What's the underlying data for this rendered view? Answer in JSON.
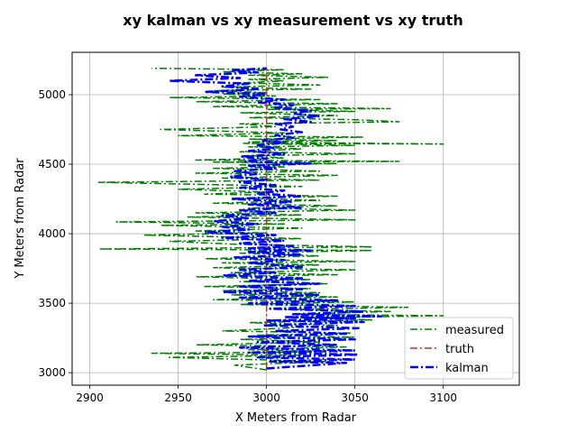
{
  "chart_data": {
    "type": "line",
    "title": "xy kalman vs xy measurement vs xy truth",
    "xlabel": "X Meters from Radar",
    "ylabel": "Y Meters from Radar",
    "xlim": [
      2890,
      3143
    ],
    "ylim": [
      2910,
      5305
    ],
    "xticks": [
      "2900",
      "2950",
      "3000",
      "3050",
      "3100"
    ],
    "yticks": [
      "3000",
      "3500",
      "4000",
      "4500",
      "5000"
    ],
    "grid": true,
    "legend_position": "lower-right",
    "series": [
      {
        "name": "measured",
        "color": "#008000",
        "style": "dash-dot",
        "points": [
          [
            3000,
            3020
          ],
          [
            2982,
            3055
          ],
          [
            3035,
            3080
          ],
          [
            2945,
            3110
          ],
          [
            3020,
            3125
          ],
          [
            2935,
            3140
          ],
          [
            3040,
            3150
          ],
          [
            2990,
            3165
          ],
          [
            3045,
            3185
          ],
          [
            2960,
            3200
          ],
          [
            3030,
            3220
          ],
          [
            2985,
            3240
          ],
          [
            3050,
            3255
          ],
          [
            2995,
            3270
          ],
          [
            3048,
            3285
          ],
          [
            2975,
            3300
          ],
          [
            3010,
            3320
          ],
          [
            3040,
            3340
          ],
          [
            2990,
            3360
          ],
          [
            3060,
            3380
          ],
          [
            3020,
            3395
          ],
          [
            3100,
            3410
          ],
          [
            3015,
            3420
          ],
          [
            3070,
            3440
          ],
          [
            3010,
            3455
          ],
          [
            3080,
            3470
          ],
          [
            2985,
            3490
          ],
          [
            3050,
            3510
          ],
          [
            2970,
            3525
          ],
          [
            3040,
            3545
          ],
          [
            2980,
            3560
          ],
          [
            3030,
            3575
          ],
          [
            2975,
            3590
          ],
          [
            3025,
            3605
          ],
          [
            2965,
            3620
          ],
          [
            3035,
            3640
          ],
          [
            2985,
            3655
          ],
          [
            3025,
            3670
          ],
          [
            2960,
            3690
          ],
          [
            3040,
            3705
          ],
          [
            2980,
            3720
          ],
          [
            3050,
            3740
          ],
          [
            2970,
            3755
          ],
          [
            3030,
            3775
          ],
          [
            2975,
            3790
          ],
          [
            3050,
            3800
          ],
          [
            2965,
            3820
          ],
          [
            3030,
            3840
          ],
          [
            2985,
            3860
          ],
          [
            3060,
            3880
          ],
          [
            2905,
            3890
          ],
          [
            3060,
            3905
          ],
          [
            2980,
            3925
          ],
          [
            2945,
            3945
          ],
          [
            3020,
            3965
          ],
          [
            2930,
            3990
          ],
          [
            3000,
            4005
          ],
          [
            2960,
            4020
          ],
          [
            3020,
            4040
          ],
          [
            2940,
            4060
          ],
          [
            3010,
            4070
          ],
          [
            2915,
            4085
          ],
          [
            3050,
            4100
          ],
          [
            2955,
            4120
          ],
          [
            3020,
            4135
          ],
          [
            2960,
            4150
          ],
          [
            3050,
            4170
          ],
          [
            2990,
            4185
          ],
          [
            3040,
            4200
          ],
          [
            2970,
            4220
          ],
          [
            3030,
            4240
          ],
          [
            2985,
            4255
          ],
          [
            3040,
            4270
          ],
          [
            2965,
            4285
          ],
          [
            3000,
            4300
          ],
          [
            2950,
            4320
          ],
          [
            3020,
            4340
          ],
          [
            2905,
            4370
          ],
          [
            3030,
            4385
          ],
          [
            2975,
            4400
          ],
          [
            3040,
            4420
          ],
          [
            2960,
            4435
          ],
          [
            3030,
            4450
          ],
          [
            2970,
            4470
          ],
          [
            3010,
            4480
          ],
          [
            2985,
            4495
          ],
          [
            3040,
            4505
          ],
          [
            2970,
            4515
          ],
          [
            3075,
            4520
          ],
          [
            2960,
            4530
          ],
          [
            3010,
            4545
          ],
          [
            2990,
            4560
          ],
          [
            3050,
            4575
          ],
          [
            2985,
            4590
          ],
          [
            3020,
            4610
          ],
          [
            2990,
            4625
          ],
          [
            3050,
            4635
          ],
          [
            2987,
            4650
          ],
          [
            3100,
            4645
          ],
          [
            2990,
            4660
          ],
          [
            3040,
            4670
          ],
          [
            2990,
            4680
          ],
          [
            3055,
            4695
          ],
          [
            2950,
            4705
          ],
          [
            3010,
            4725
          ],
          [
            2940,
            4750
          ],
          [
            3005,
            4770
          ],
          [
            2985,
            4790
          ],
          [
            3075,
            4805
          ],
          [
            3050,
            4820
          ],
          [
            2990,
            4835
          ],
          [
            3040,
            4850
          ],
          [
            2985,
            4870
          ],
          [
            3050,
            4880
          ],
          [
            3000,
            4895
          ],
          [
            3070,
            4900
          ],
          [
            2970,
            4915
          ],
          [
            3040,
            4935
          ],
          [
            2960,
            4950
          ],
          [
            3030,
            4965
          ],
          [
            2945,
            4980
          ],
          [
            3005,
            4990
          ],
          [
            2975,
            5005
          ],
          [
            3000,
            5015
          ],
          [
            2970,
            5030
          ],
          [
            3025,
            5040
          ],
          [
            2975,
            5055
          ],
          [
            3030,
            5070
          ],
          [
            2985,
            5085
          ],
          [
            3010,
            5100
          ],
          [
            2990,
            5110
          ],
          [
            3035,
            5125
          ],
          [
            2990,
            5140
          ],
          [
            3020,
            5150
          ],
          [
            2975,
            5165
          ],
          [
            3010,
            5180
          ],
          [
            2935,
            5190
          ]
        ]
      },
      {
        "name": "truth",
        "color": "#d62728",
        "style": "dash-dot",
        "points": [
          [
            3000,
            3025
          ],
          [
            3000,
            5190
          ]
        ]
      },
      {
        "name": "kalman",
        "color": "#0000ff",
        "style": "dash-dot",
        "points": [
          [
            3000,
            3030
          ],
          [
            3045,
            3070
          ],
          [
            3002,
            3080
          ],
          [
            3050,
            3095
          ],
          [
            2995,
            3110
          ],
          [
            3052,
            3130
          ],
          [
            2990,
            3145
          ],
          [
            3050,
            3160
          ],
          [
            2985,
            3180
          ],
          [
            3040,
            3200
          ],
          [
            2995,
            3220
          ],
          [
            3050,
            3240
          ],
          [
            2990,
            3260
          ],
          [
            3045,
            3280
          ],
          [
            3005,
            3300
          ],
          [
            3052,
            3320
          ],
          [
            2998,
            3340
          ],
          [
            3055,
            3365
          ],
          [
            3000,
            3375
          ],
          [
            3050,
            3390
          ],
          [
            3010,
            3400
          ],
          [
            3065,
            3405
          ],
          [
            3015,
            3420
          ],
          [
            3055,
            3440
          ],
          [
            3002,
            3460
          ],
          [
            3050,
            3480
          ],
          [
            2990,
            3500
          ],
          [
            3040,
            3520
          ],
          [
            2985,
            3540
          ],
          [
            3030,
            3560
          ],
          [
            2975,
            3580
          ],
          [
            3020,
            3600
          ],
          [
            2985,
            3620
          ],
          [
            3030,
            3640
          ],
          [
            2990,
            3660
          ],
          [
            3020,
            3680
          ],
          [
            2975,
            3700
          ],
          [
            3005,
            3720
          ],
          [
            2985,
            3740
          ],
          [
            3020,
            3760
          ],
          [
            2990,
            3790
          ],
          [
            3010,
            3810
          ],
          [
            2982,
            3830
          ],
          [
            3020,
            3850
          ],
          [
            2990,
            3870
          ],
          [
            3025,
            3880
          ],
          [
            2990,
            3895
          ],
          [
            3015,
            3910
          ],
          [
            2985,
            3930
          ],
          [
            3010,
            3950
          ],
          [
            2975,
            3970
          ],
          [
            3005,
            3990
          ],
          [
            2965,
            4010
          ],
          [
            2990,
            4030
          ],
          [
            2975,
            4050
          ],
          [
            2995,
            4070
          ],
          [
            2970,
            4090
          ],
          [
            2990,
            4110
          ],
          [
            2975,
            4130
          ],
          [
            3005,
            4150
          ],
          [
            2985,
            4170
          ],
          [
            3020,
            4190
          ],
          [
            2990,
            4210
          ],
          [
            3015,
            4230
          ],
          [
            2980,
            4250
          ],
          [
            3020,
            4270
          ],
          [
            2995,
            4290
          ],
          [
            3010,
            4310
          ],
          [
            2985,
            4330
          ],
          [
            3005,
            4350
          ],
          [
            2985,
            4370
          ],
          [
            3000,
            4390
          ],
          [
            2980,
            4410
          ],
          [
            2995,
            4430
          ],
          [
            2982,
            4450
          ],
          [
            3005,
            4470
          ],
          [
            2990,
            4490
          ],
          [
            3025,
            4505
          ],
          [
            2988,
            4520
          ],
          [
            3000,
            4540
          ],
          [
            2985,
            4555
          ],
          [
            3010,
            4575
          ],
          [
            2990,
            4595
          ],
          [
            3005,
            4615
          ],
          [
            2995,
            4635
          ],
          [
            3010,
            4655
          ],
          [
            2998,
            4670
          ],
          [
            3015,
            4690
          ],
          [
            3005,
            4710
          ],
          [
            3020,
            4730
          ],
          [
            3008,
            4750
          ],
          [
            3015,
            4770
          ],
          [
            3005,
            4790
          ],
          [
            3025,
            4805
          ],
          [
            3010,
            4825
          ],
          [
            3030,
            4845
          ],
          [
            3015,
            4865
          ],
          [
            3025,
            4885
          ],
          [
            3005,
            4905
          ],
          [
            3015,
            4925
          ],
          [
            2995,
            4945
          ],
          [
            3010,
            4965
          ],
          [
            2985,
            4985
          ],
          [
            3000,
            5005
          ],
          [
            2965,
            5020
          ],
          [
            2995,
            5040
          ],
          [
            2975,
            5060
          ],
          [
            2990,
            5080
          ],
          [
            2945,
            5100
          ],
          [
            2985,
            5120
          ],
          [
            2960,
            5140
          ],
          [
            2995,
            5160
          ],
          [
            2980,
            5175
          ],
          [
            3000,
            5190
          ]
        ]
      }
    ]
  }
}
